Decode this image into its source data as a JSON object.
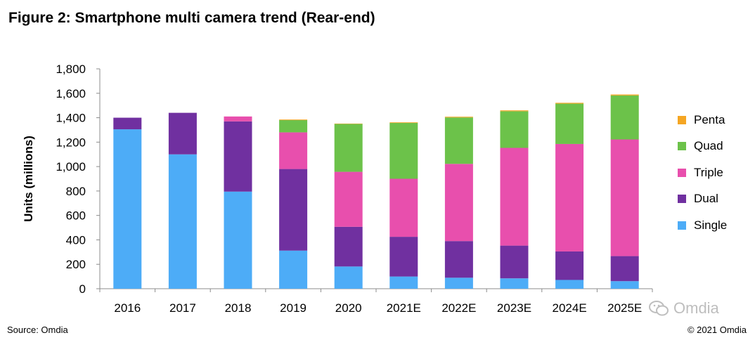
{
  "title": "Figure 2: Smartphone multi camera trend (Rear-end)",
  "source": "Source: Omdia",
  "copyright": "© 2021 Omdia",
  "watermark": "Omdia",
  "chart_data": {
    "type": "bar",
    "stacked": true,
    "categories": [
      "2016",
      "2017",
      "2018",
      "2019",
      "2020",
      "2021E",
      "2022E",
      "2023E",
      "2024E",
      "2025E"
    ],
    "ylabel": "Units (millions)",
    "xlabel": "",
    "ylim": [
      0,
      1800
    ],
    "yticks": [
      "0",
      "200",
      "400",
      "600",
      "800",
      "1,000",
      "1,200",
      "1,400",
      "1,600",
      "1,800"
    ],
    "grid": false,
    "legend_position": "right",
    "series": [
      {
        "name": "Single",
        "color": "#4dacf7",
        "values": [
          1305,
          1100,
          795,
          312,
          182,
          100,
          90,
          85,
          72,
          62
        ]
      },
      {
        "name": "Dual",
        "color": "#7030a0",
        "values": [
          95,
          340,
          575,
          668,
          325,
          325,
          300,
          268,
          233,
          205
        ]
      },
      {
        "name": "Triple",
        "color": "#e84fad",
        "values": [
          0,
          0,
          40,
          300,
          450,
          475,
          632,
          800,
          880,
          955
        ]
      },
      {
        "name": "Quad",
        "color": "#6cc24a",
        "values": [
          0,
          0,
          0,
          100,
          392,
          457,
          380,
          300,
          330,
          360
        ]
      },
      {
        "name": "Penta",
        "color": "#f5a623",
        "values": [
          0,
          0,
          0,
          5,
          3,
          5,
          6,
          7,
          7,
          8
        ]
      }
    ]
  }
}
